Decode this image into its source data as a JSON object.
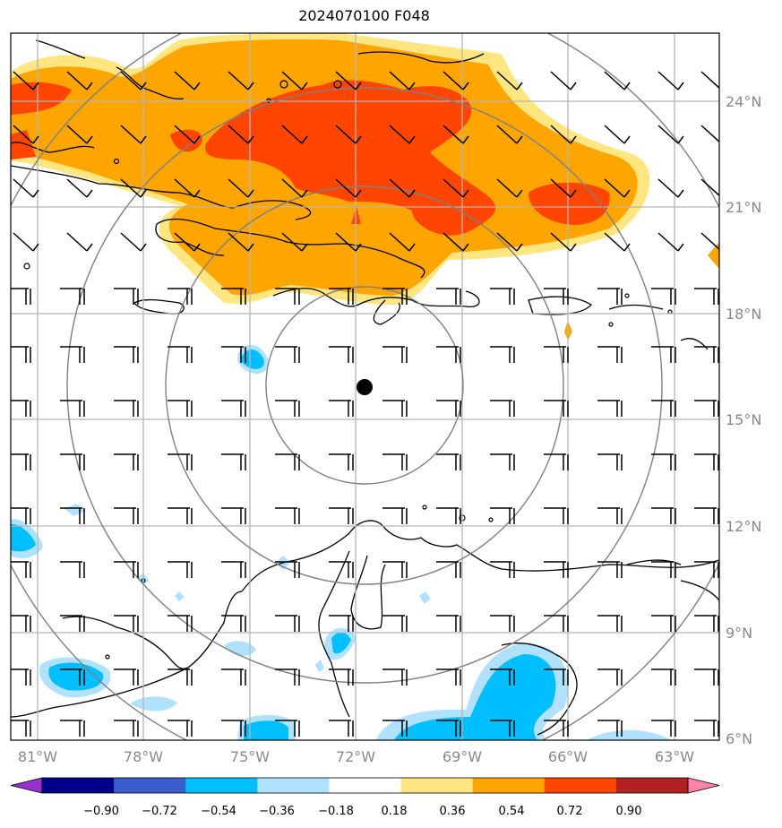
{
  "title": "2024070100 F048",
  "map": {
    "lat_labels": [
      "24°N",
      "21°N",
      "18°N",
      "15°N",
      "12°N",
      "9°N",
      "6°N"
    ],
    "lon_labels": [
      "81°W",
      "78°W",
      "75°W",
      "72°W",
      "69°W",
      "66°W",
      "63°W"
    ],
    "center_marker": {
      "lon": -72.0,
      "lat": 15.9
    },
    "range_ring_count": 4
  },
  "colorbar": {
    "ticks": [
      "−0.90",
      "−0.72",
      "−0.54",
      "−0.36",
      "−0.18",
      "0.18",
      "0.36",
      "0.54",
      "0.72",
      "0.90"
    ],
    "colors": [
      "#9932cc",
      "#00008b",
      "#3a5fcd",
      "#00bfff",
      "#b0e2ff",
      "#ffffff",
      "#ffe680",
      "#ffa500",
      "#ff4500",
      "#b22222",
      "#ff82ab"
    ]
  }
}
